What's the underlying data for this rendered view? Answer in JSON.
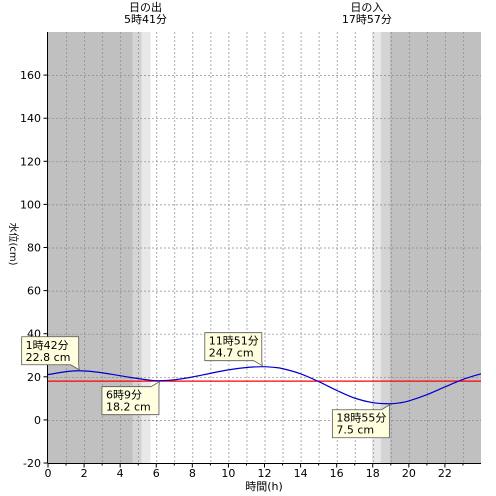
{
  "chart_data": {
    "type": "line",
    "xlabel": "時間(h)",
    "ylabel": "水位(cm)",
    "xlim": [
      0,
      24
    ],
    "ylim": [
      -20,
      180
    ],
    "x_ticks": [
      0,
      2,
      4,
      6,
      8,
      10,
      12,
      14,
      16,
      18,
      20,
      22
    ],
    "y_ticks": [
      -20,
      0,
      20,
      40,
      60,
      80,
      100,
      120,
      140,
      160
    ],
    "grid": true,
    "reference_line": {
      "y": 18,
      "color": "#ff0000"
    },
    "sun": {
      "sunrise": {
        "label": "日の出",
        "time_text": "5時41分",
        "hour": 5.683
      },
      "sunset": {
        "label": "日の入",
        "time_text": "17時57分",
        "hour": 17.95
      }
    },
    "series": [
      {
        "color": "#0000cc",
        "x": [
          0,
          1,
          1.7,
          2.5,
          3.5,
          4.5,
          5.5,
          6.15,
          7,
          8,
          9,
          10,
          11,
          11.85,
          12.5,
          13,
          14,
          15,
          16,
          17,
          18,
          18.92,
          19.5,
          20,
          21,
          22,
          23,
          24
        ],
        "y": [
          21.0,
          22.4,
          22.8,
          22.4,
          21.2,
          19.8,
          18.6,
          18.2,
          18.6,
          19.9,
          21.6,
          23.2,
          24.3,
          24.7,
          24.4,
          23.8,
          21.4,
          17.8,
          13.7,
          10.1,
          8.0,
          7.5,
          7.9,
          8.8,
          11.7,
          15.3,
          18.8,
          21.4
        ]
      }
    ],
    "annotations": [
      {
        "time": "1時42分",
        "value": "22.8 cm",
        "x": 1.7,
        "y": 22.8,
        "placement": "above"
      },
      {
        "time": "6時9分",
        "value": "18.2 cm",
        "x": 6.15,
        "y": 18.2,
        "placement": "below"
      },
      {
        "time": "11時51分",
        "value": "24.7 cm",
        "x": 11.85,
        "y": 24.7,
        "placement": "above"
      },
      {
        "time": "18時55分",
        "value": "7.5 cm",
        "x": 18.92,
        "y": 7.5,
        "placement": "below"
      }
    ],
    "colors": {
      "night": "#c0c0c0",
      "twilight_outer": "#d4d4d4",
      "twilight_inner": "#e8e8e8",
      "day": "#ffffff",
      "annotation_fill": "#ffffe0"
    }
  }
}
